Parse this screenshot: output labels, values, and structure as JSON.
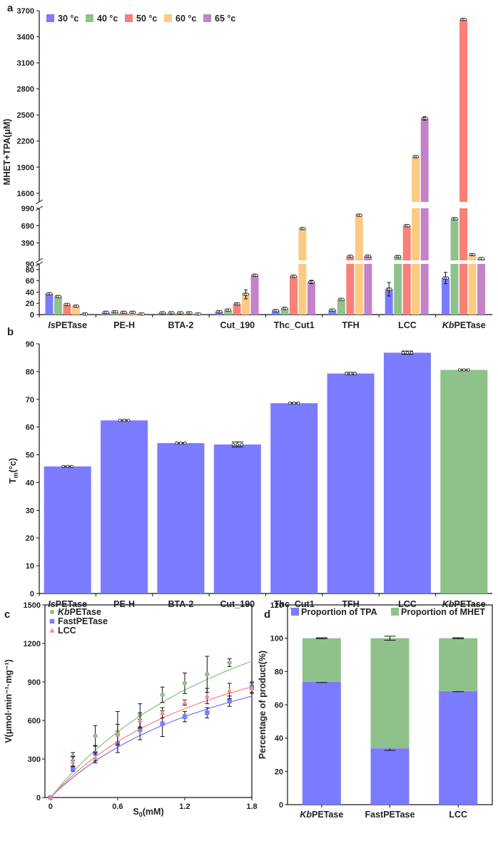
{
  "chart_data": [
    {
      "panel": "a",
      "type": "bar",
      "ylabel": "MHET+TPA(μM)",
      "categories": [
        {
          "name": "IsPETase",
          "prefix": "Is",
          "suffix": "PETase"
        },
        {
          "name": "PE-H",
          "prefix": "",
          "suffix": "PE-H"
        },
        {
          "name": "BTA-2",
          "prefix": "",
          "suffix": "BTA-2"
        },
        {
          "name": "Cut_190",
          "prefix": "",
          "suffix": "Cut_190"
        },
        {
          "name": "Thc_Cut1",
          "prefix": "",
          "suffix": "Thc_Cut1"
        },
        {
          "name": "TFH",
          "prefix": "",
          "suffix": "TFH"
        },
        {
          "name": "LCC",
          "prefix": "",
          "suffix": "LCC"
        },
        {
          "name": "KbPETase",
          "prefix": "Kb",
          "suffix": "PETase"
        }
      ],
      "series": [
        {
          "name": "30 °c",
          "color": "#7b7bff",
          "values": [
            37,
            4,
            3,
            5,
            7,
            8,
            45,
            65
          ],
          "errors": [
            1,
            0.5,
            0.5,
            0.5,
            1,
            1,
            12,
            10
          ]
        },
        {
          "name": "40 °c",
          "color": "#8fc28a",
          "values": [
            32,
            5,
            3,
            8,
            11,
            27,
            155,
            810
          ],
          "errors": [
            1,
            0.5,
            0.5,
            0.5,
            2,
            1,
            8,
            5
          ]
        },
        {
          "name": "50 °c",
          "color": "#f88078",
          "values": [
            18,
            4,
            3,
            19,
            68,
            160,
            690,
            3600
          ],
          "errors": [
            1,
            0.5,
            0.5,
            0.5,
            1,
            3,
            5,
            10
          ]
        },
        {
          "name": "60 °c",
          "color": "#fcca80",
          "values": [
            15,
            4,
            3,
            36,
            640,
            870,
            2020,
            190
          ],
          "errors": [
            1,
            0.5,
            0.5,
            8,
            5,
            5,
            5,
            3
          ]
        },
        {
          "name": "65 °c",
          "color": "#c483c8",
          "values": [
            1,
            1,
            1,
            70,
            58,
            165,
            2460,
            120
          ],
          "errors": [
            0.3,
            0.3,
            0.3,
            1,
            3,
            3,
            20,
            3
          ]
        }
      ],
      "y_segments": [
        {
          "range": [
            0,
            90
          ],
          "ticks": [
            0,
            20,
            40,
            60,
            80
          ]
        },
        {
          "range": [
            90,
            990
          ],
          "ticks": [
            90,
            390,
            690,
            990
          ]
        },
        {
          "range": [
            1500,
            3700
          ],
          "ticks": [
            1600,
            1900,
            2200,
            2500,
            2800,
            3100,
            3400,
            3700
          ]
        }
      ],
      "legend_position": "top-left"
    },
    {
      "panel": "b",
      "type": "bar",
      "ylabel": "T",
      "ylabel_sub": "m",
      "ylabel_unit": "(°c)",
      "ylim": [
        0,
        90
      ],
      "yticks": [
        0,
        10,
        20,
        30,
        40,
        50,
        60,
        70,
        80,
        90
      ],
      "categories": [
        {
          "name": "IsPETase",
          "prefix": "Is",
          "suffix": "PETase"
        },
        {
          "name": "PE-H",
          "prefix": "",
          "suffix": "PE-H"
        },
        {
          "name": "BTA-2",
          "prefix": "",
          "suffix": "BTA-2"
        },
        {
          "name": "Cut_190",
          "prefix": "",
          "suffix": "Cut_190"
        },
        {
          "name": "Thc_Cut1",
          "prefix": "",
          "suffix": "Thc_Cut1"
        },
        {
          "name": "TFH",
          "prefix": "",
          "suffix": "TFH"
        },
        {
          "name": "LCC",
          "prefix": "",
          "suffix": "LCC"
        },
        {
          "name": "KbPETase",
          "prefix": "Kb",
          "suffix": "PETase"
        }
      ],
      "values": [
        45.8,
        62.4,
        54.2,
        53.7,
        68.6,
        79.3,
        86.8,
        80.6
      ],
      "errors": [
        0.2,
        0.2,
        0.2,
        0.9,
        0.2,
        0.4,
        0.6,
        0.2
      ],
      "colors": [
        "#7b7bff",
        "#7b7bff",
        "#7b7bff",
        "#7b7bff",
        "#7b7bff",
        "#7b7bff",
        "#7b7bff",
        "#8fc28a"
      ]
    },
    {
      "panel": "c",
      "type": "scatter",
      "xlabel": "S",
      "xlabel_sub": "0",
      "xlabel_unit": "(mM)",
      "ylabel": "V(μmol·min⁻¹·mg⁻¹)",
      "xlim": [
        -0.05,
        1.8
      ],
      "ylim": [
        0,
        1500
      ],
      "xticks": [
        0,
        0.6,
        1.2,
        1.8
      ],
      "xtick_labels": [
        "0",
        "0.6",
        "1.2",
        "1.8"
      ],
      "yticks": [
        0,
        300,
        600,
        900,
        1200,
        1500
      ],
      "legend_position": "top-left",
      "series": [
        {
          "name": "KbPETase",
          "prefix": "Kb",
          "suffix": "PETase",
          "color": "#8fc28a",
          "marker": "circle",
          "x": [
            0,
            0.2,
            0.4,
            0.6,
            0.8,
            1.0,
            1.2,
            1.4,
            1.6
          ],
          "y": [
            0,
            320,
            480,
            510,
            640,
            800,
            890,
            960,
            1050
          ],
          "err": [
            0,
            30,
            80,
            160,
            90,
            60,
            80,
            140,
            30
          ],
          "fit": {
            "vmax": 2300,
            "km": 2.1
          }
        },
        {
          "name": "FastPETase",
          "prefix": "",
          "suffix": "FastPETase",
          "color": "#7b7bff",
          "marker": "square",
          "x": [
            0,
            0.2,
            0.4,
            0.6,
            0.8,
            1.0,
            1.2,
            1.4,
            1.6,
            1.8
          ],
          "y": [
            0,
            225,
            345,
            420,
            530,
            575,
            630,
            660,
            750,
            860
          ],
          "err": [
            0,
            20,
            60,
            70,
            80,
            100,
            40,
            40,
            40,
            40
          ],
          "fit": {
            "vmax": 1600,
            "km": 1.85
          }
        },
        {
          "name": "LCC",
          "prefix": "",
          "suffix": "LCC",
          "color": "#f88a84",
          "marker": "triangle",
          "x": [
            0,
            0.2,
            0.4,
            0.6,
            0.8,
            1.0,
            1.2,
            1.4,
            1.6,
            1.8
          ],
          "y": [
            0,
            280,
            310,
            490,
            600,
            660,
            740,
            790,
            830,
            850
          ],
          "err": [
            0,
            40,
            40,
            80,
            60,
            40,
            20,
            60,
            60,
            40
          ],
          "fit": {
            "vmax": 1700,
            "km": 1.75
          }
        }
      ]
    },
    {
      "panel": "d",
      "type": "bar",
      "stacked": true,
      "ylabel": "Percentage of product(%)",
      "ylim": [
        0,
        120
      ],
      "yticks": [
        0,
        20,
        40,
        60,
        80,
        100,
        120
      ],
      "categories": [
        {
          "name": "KbPETase",
          "prefix": "Kb",
          "suffix": "PETase"
        },
        {
          "name": "FastPETase",
          "prefix": "",
          "suffix": "FastPETase"
        },
        {
          "name": "LCC",
          "prefix": "",
          "suffix": "LCC"
        }
      ],
      "series": [
        {
          "name": "Proportion of TPA",
          "color": "#7b7bff",
          "values": [
            73.7,
            33.8,
            68.2
          ],
          "errors": [
            0.3,
            1.2,
            0.3
          ]
        },
        {
          "name": "Proportion of MHET",
          "color": "#8fc28a",
          "values": [
            26.3,
            66.2,
            31.8
          ],
          "errors": [
            0.3,
            1.2,
            0.3
          ]
        }
      ],
      "legend_position": "top"
    }
  ]
}
